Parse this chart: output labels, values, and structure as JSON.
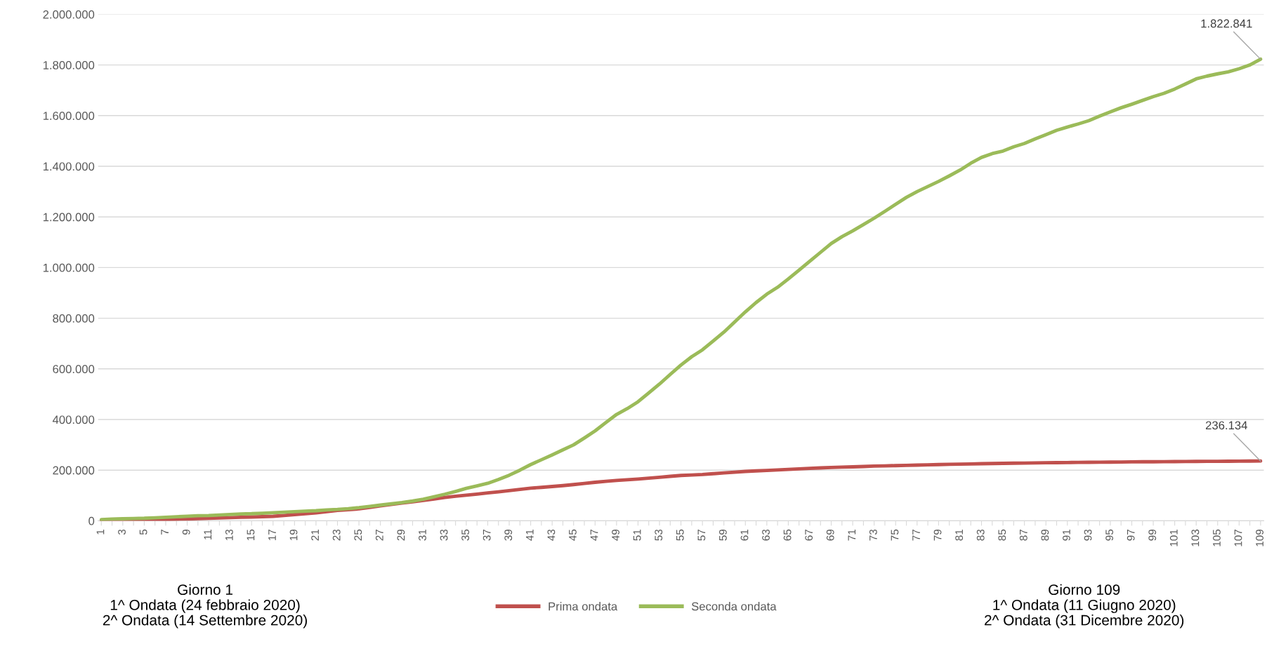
{
  "chart_data": {
    "type": "line",
    "categories": [
      "1",
      null,
      "3",
      null,
      "5",
      null,
      "7",
      null,
      "9",
      null,
      "11",
      null,
      "13",
      null,
      "15",
      null,
      "17",
      null,
      "19",
      null,
      "21",
      null,
      "23",
      null,
      "25",
      null,
      "27",
      null,
      "29",
      null,
      "31",
      null,
      "33",
      null,
      "35",
      null,
      "37",
      null,
      "39",
      null,
      "41",
      null,
      "43",
      null,
      "45",
      null,
      "47",
      null,
      "49",
      null,
      "51",
      null,
      "53",
      null,
      "55",
      null,
      "57",
      null,
      "59",
      null,
      "61",
      null,
      "63",
      null,
      "65",
      null,
      "67",
      null,
      "69",
      null,
      "71",
      null,
      "73",
      null,
      "75",
      null,
      "77",
      null,
      "79",
      null,
      "81",
      null,
      "83",
      null,
      "85",
      null,
      "87",
      null,
      "89",
      null,
      "91",
      null,
      "93",
      null,
      "95",
      null,
      "97",
      null,
      "99",
      null,
      "101",
      null,
      "103",
      null,
      "105",
      null,
      "107",
      null,
      "109"
    ],
    "series": [
      {
        "name": "Prima ondata",
        "color": "#c0504d",
        "values": [
          300,
          600,
          1000,
          1700,
          2500,
          3500,
          4600,
          6000,
          7400,
          8700,
          10000,
          11200,
          12500,
          13800,
          15100,
          16300,
          17700,
          21000,
          24700,
          28000,
          31500,
          36000,
          41000,
          44000,
          47000,
          53000,
          59000,
          64500,
          70000,
          75000,
          80500,
          86000,
          92000,
          97000,
          101000,
          105500,
          110000,
          114500,
          119000,
          124000,
          129000,
          132000,
          135500,
          139000,
          143000,
          147500,
          152000,
          156000,
          159500,
          162000,
          165000,
          168500,
          172000,
          175500,
          179000,
          181000,
          183000,
          186000,
          189000,
          192000,
          195000,
          197000,
          199000,
          201000,
          203000,
          205000,
          207000,
          209000,
          210700,
          212000,
          213000,
          214500,
          216000,
          217000,
          218000,
          219000,
          220000,
          221000,
          222000,
          223000,
          223700,
          224500,
          225400,
          226200,
          227000,
          227500,
          228000,
          228700,
          229300,
          229700,
          230100,
          230600,
          231100,
          231400,
          231700,
          232200,
          232700,
          233000,
          233200,
          233500,
          233800,
          234200,
          234500,
          234800,
          235000,
          235300,
          235500,
          235800,
          236134
        ]
      },
      {
        "name": "Seconda ondata",
        "color": "#9bbb59",
        "values": [
          5000,
          7000,
          8000,
          9000,
          10000,
          12000,
          14000,
          16000,
          18000,
          20000,
          21000,
          23000,
          25000,
          27000,
          28000,
          30000,
          32000,
          34000,
          36000,
          38000,
          40000,
          43000,
          45000,
          48000,
          52000,
          57000,
          62000,
          67000,
          72000,
          78000,
          85000,
          95000,
          105000,
          116000,
          128000,
          138000,
          148000,
          163000,
          180000,
          200000,
          222000,
          241000,
          260000,
          280000,
          300000,
          327000,
          355000,
          388000,
          420000,
          443000,
          470000,
          505000,
          540000,
          578000,
          615000,
          648000,
          675000,
          710000,
          745000,
          785000,
          825000,
          862000,
          895000,
          922000,
          955000,
          990000,
          1025000,
          1060000,
          1095000,
          1122000,
          1145000,
          1170000,
          1195000,
          1222000,
          1250000,
          1277000,
          1300000,
          1320000,
          1340000,
          1362000,
          1385000,
          1412000,
          1435000,
          1450000,
          1460000,
          1477000,
          1490000,
          1508000,
          1525000,
          1542000,
          1555000,
          1567000,
          1580000,
          1598000,
          1615000,
          1631000,
          1645000,
          1660000,
          1675000,
          1688000,
          1705000,
          1725000,
          1745000,
          1756000,
          1765000,
          1773000,
          1785000,
          1800000,
          1822841
        ]
      }
    ],
    "ylim": [
      0,
      2000000
    ],
    "yticks": [
      {
        "value": 0,
        "label": "0"
      },
      {
        "value": 200000,
        "label": "200.000"
      },
      {
        "value": 400000,
        "label": "400.000"
      },
      {
        "value": 600000,
        "label": "600.000"
      },
      {
        "value": 800000,
        "label": "800.000"
      },
      {
        "value": 1000000,
        "label": "1.000.000"
      },
      {
        "value": 1200000,
        "label": "1.200.000"
      },
      {
        "value": 1400000,
        "label": "1.400.000"
      },
      {
        "value": 1600000,
        "label": "1.600.000"
      },
      {
        "value": 1800000,
        "label": "1.800.000"
      },
      {
        "value": 2000000,
        "label": "2.000.000"
      }
    ],
    "grid": "y",
    "legend": "bottom",
    "marker": "none",
    "line_style": "solid",
    "annotations": [
      {
        "text": "1.822.841",
        "x": "109",
        "y": 1822841
      },
      {
        "text": "236.134",
        "x": "109",
        "y": 236134
      },
      "Giorno 1\n1^ Ondata (24 febbraio 2020)\n2^ Ondata (14 Settembre 2020)",
      "Giorno 109\n1^ Ondata (11 Giugno 2020)\n2^ Ondata (31 Dicembre 2020)"
    ]
  }
}
